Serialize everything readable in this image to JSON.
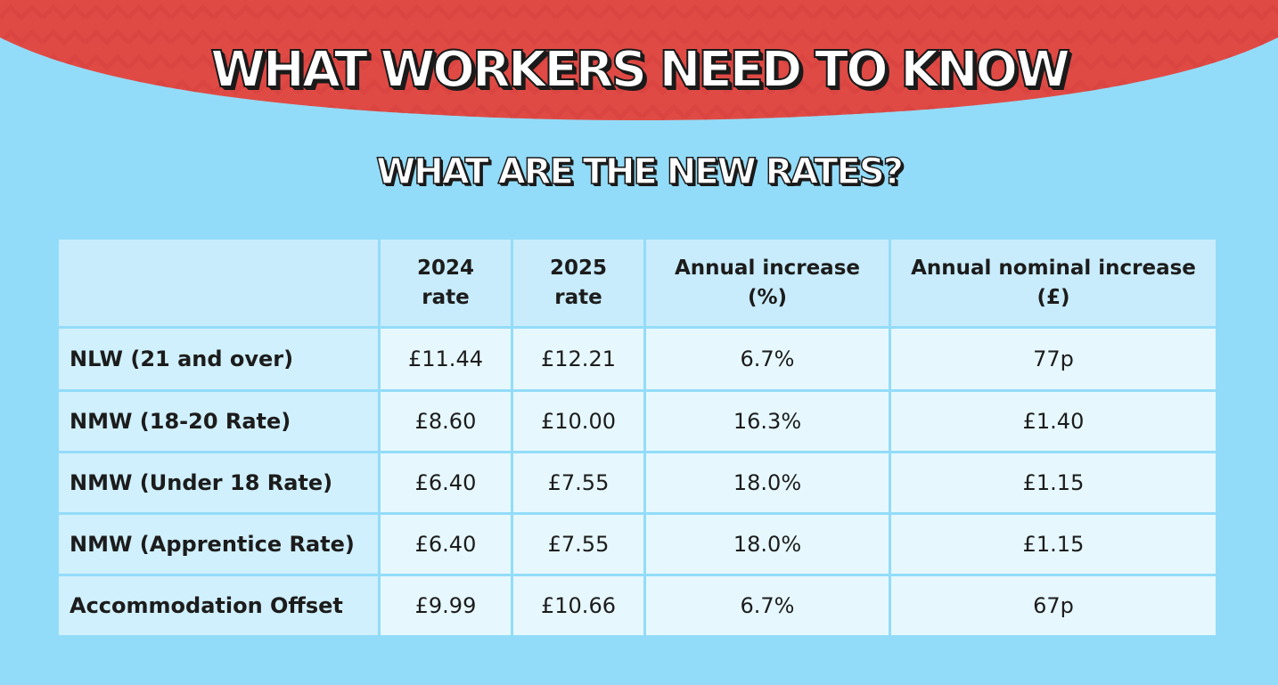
{
  "header": {
    "title": "WHAT WORKERS NEED TO KNOW",
    "subtitle": "WHAT ARE THE NEW RATES?"
  },
  "colors": {
    "banner_red": "#e04a45",
    "background_blue": "#93dcf9",
    "header_cell": "#c8ecfc",
    "label_cell": "#d0f0fd",
    "value_cell": "#e6f8fe"
  },
  "table": {
    "columns": [
      {
        "line1": "",
        "line2": ""
      },
      {
        "line1": "2024",
        "line2": "rate"
      },
      {
        "line1": "2025",
        "line2": "rate"
      },
      {
        "line1": "Annual increase",
        "line2": "(%)"
      },
      {
        "line1": "Annual nominal increase",
        "line2": "(£)"
      }
    ],
    "rows": [
      {
        "label": "NLW (21 and over)",
        "rate_2024": "£11.44",
        "rate_2025": "£12.21",
        "increase_pct": "6.7%",
        "increase_gbp": "77p"
      },
      {
        "label": "NMW (18-20 Rate)",
        "rate_2024": "£8.60",
        "rate_2025": "£10.00",
        "increase_pct": "16.3%",
        "increase_gbp": "£1.40"
      },
      {
        "label": "NMW (Under 18 Rate)",
        "rate_2024": "£6.40",
        "rate_2025": "£7.55",
        "increase_pct": "18.0%",
        "increase_gbp": "£1.15"
      },
      {
        "label": "NMW (Apprentice Rate)",
        "rate_2024": "£6.40",
        "rate_2025": "£7.55",
        "increase_pct": "18.0%",
        "increase_gbp": "£1.15"
      },
      {
        "label": "Accommodation Offset",
        "rate_2024": "£9.99",
        "rate_2025": "£10.66",
        "increase_pct": "6.7%",
        "increase_gbp": "67p"
      }
    ]
  }
}
